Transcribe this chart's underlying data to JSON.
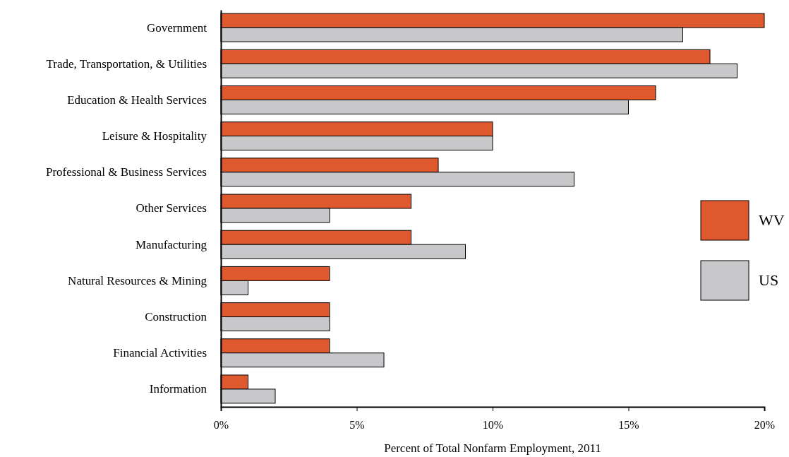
{
  "chart_data": {
    "type": "bar",
    "orientation": "horizontal",
    "xlabel": "Percent of Total Nonfarm Employment, 2011",
    "categories": [
      "Government",
      "Trade, Transportation, & Utilities",
      "Education & Health Services",
      "Leisure & Hospitality",
      "Professional & Business Services",
      "Other Services",
      "Manufacturing",
      "Natural Resources & Mining",
      "Construction",
      "Financial Activities",
      "Information"
    ],
    "series": [
      {
        "name": "WV",
        "color": "#de5a2e",
        "values": [
          20,
          18,
          16,
          10,
          8,
          7,
          7,
          4,
          4,
          4,
          1
        ]
      },
      {
        "name": "US",
        "color": "#c8c8ca",
        "values": [
          17,
          19,
          15,
          10,
          13,
          4,
          9,
          1,
          4,
          6,
          2
        ]
      }
    ],
    "xlim": [
      0,
      20
    ],
    "xticks": [
      {
        "value": 0,
        "label": "0%"
      },
      {
        "value": 5,
        "label": "5%"
      },
      {
        "value": 10,
        "label": "10%"
      },
      {
        "value": 15,
        "label": "15%"
      },
      {
        "value": 20,
        "label": "20%"
      }
    ],
    "grid": false,
    "legend": "right"
  }
}
